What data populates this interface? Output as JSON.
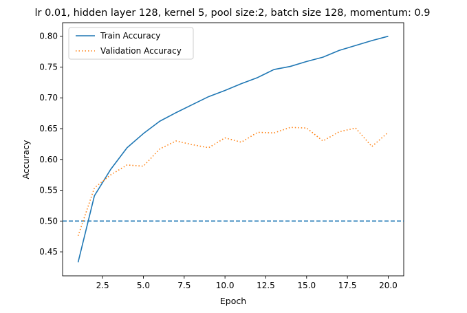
{
  "chart_data": {
    "type": "line",
    "title": "lr 0.01, hidden layer 128, kernel 5, pool size:2, batch size 128, momentum: 0.9",
    "xlabel": "Epoch",
    "ylabel": "Accuracy",
    "xlim": [
      0.05,
      20.95
    ],
    "ylim": [
      0.411,
      0.822
    ],
    "x": [
      1,
      2,
      3,
      4,
      5,
      6,
      7,
      8,
      9,
      10,
      11,
      12,
      13,
      14,
      15,
      16,
      17,
      18,
      19,
      20
    ],
    "xticks": [
      2.5,
      5.0,
      7.5,
      10.0,
      12.5,
      15.0,
      17.5,
      20.0
    ],
    "xtick_labels": [
      "2.5",
      "5.0",
      "7.5",
      "10.0",
      "12.5",
      "15.0",
      "17.5",
      "20.0"
    ],
    "yticks": [
      0.45,
      0.5,
      0.55,
      0.6,
      0.65,
      0.7,
      0.75,
      0.8
    ],
    "ytick_labels": [
      "0.45",
      "0.50",
      "0.55",
      "0.60",
      "0.65",
      "0.70",
      "0.75",
      "0.80"
    ],
    "grid": false,
    "legend_position": "upper-left",
    "series": [
      {
        "name": "Train Accuracy",
        "color": "#1f77b4",
        "style": "solid",
        "values": [
          0.433,
          0.541,
          0.584,
          0.619,
          0.642,
          0.662,
          0.676,
          0.689,
          0.702,
          0.712,
          0.723,
          0.733,
          0.746,
          0.751,
          0.759,
          0.766,
          0.777,
          0.785,
          0.793,
          0.8
        ]
      },
      {
        "name": "Validation Accuracy",
        "color": "#ff7f0e",
        "style": "dotted",
        "values": [
          0.476,
          0.554,
          0.575,
          0.591,
          0.589,
          0.617,
          0.63,
          0.624,
          0.619,
          0.635,
          0.628,
          0.644,
          0.643,
          0.652,
          0.651,
          0.63,
          0.645,
          0.651,
          0.621,
          0.644
        ]
      }
    ],
    "reference_lines": [
      {
        "orientation": "horizontal",
        "y": 0.5,
        "color": "#1f77b4",
        "style": "dashed"
      }
    ]
  }
}
